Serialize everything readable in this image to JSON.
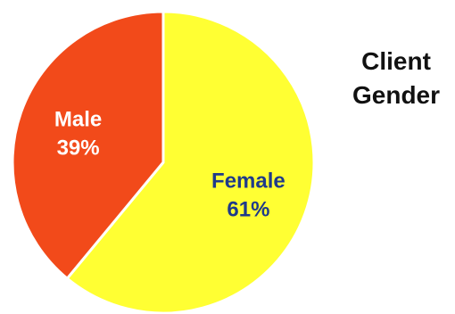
{
  "chart_data": {
    "type": "pie",
    "title_lines": [
      "Client",
      "Gender"
    ],
    "slices": [
      {
        "label": "Female",
        "percent_label": "61%",
        "value": 61,
        "color": "#ffff33",
        "label_color": "#1f3a8a"
      },
      {
        "label": "Male",
        "percent_label": "39%",
        "value": 39,
        "color": "#f24a1a",
        "label_color": "#ffffff"
      }
    ],
    "start_angle_deg": 0,
    "direction": "clockwise",
    "slice_border_color": "#ffffff",
    "legend": "none"
  }
}
